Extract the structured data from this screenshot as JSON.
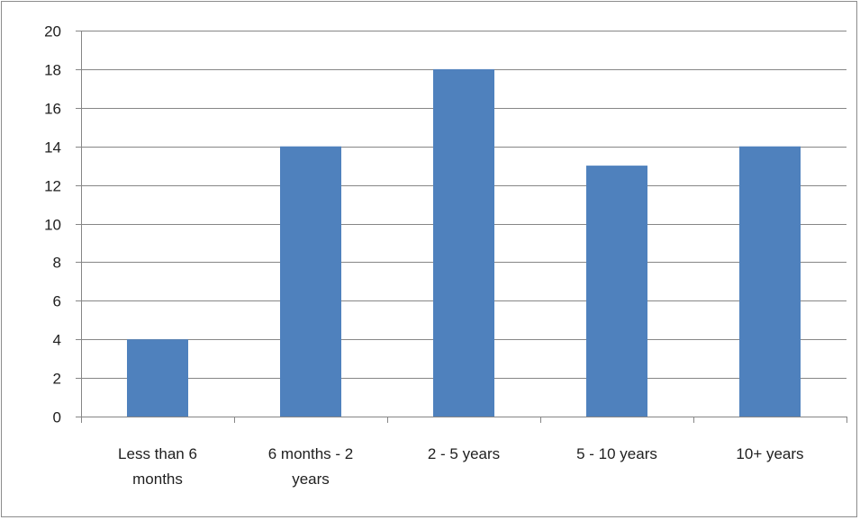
{
  "chart_data": {
    "type": "bar",
    "categories": [
      "Less than 6 months",
      "6 months - 2 years",
      "2 - 5 years",
      "5 - 10 years",
      "10+ years"
    ],
    "category_label_lines": [
      [
        "Less than 6",
        "months"
      ],
      [
        "6 months - 2",
        "years"
      ],
      [
        "2 - 5 years"
      ],
      [
        "5 - 10 years"
      ],
      [
        "10+ years"
      ]
    ],
    "values": [
      4,
      14,
      18,
      13,
      14
    ],
    "ylim": [
      0,
      20
    ],
    "yticks": [
      0,
      2,
      4,
      6,
      8,
      10,
      12,
      14,
      16,
      18,
      20
    ],
    "ytick_labels": [
      "0",
      "2",
      "4",
      "6",
      "8",
      "10",
      "12",
      "14",
      "16",
      "18",
      "20"
    ],
    "grid": true,
    "legend": "none",
    "colors": {
      "bar": "#4f81bd",
      "grid": "#868686",
      "axis": "#868686"
    }
  }
}
